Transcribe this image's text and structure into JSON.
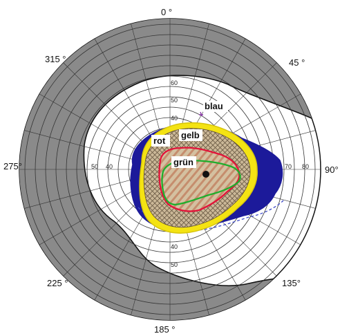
{
  "diagram": {
    "angle_labels": {
      "a0": "0 °",
      "a45": "45 °",
      "a90": "90°",
      "a135": "135°",
      "a185": "185 °",
      "a225": "225 °",
      "a275": "275°",
      "a315": "315 °"
    },
    "ring_labels": {
      "top_60": "60",
      "top_50": "50",
      "top_40": "40",
      "left_50": "50",
      "left_40": "40",
      "right_70": "70",
      "right_80": "80",
      "bottom_40": "40",
      "bottom_50": "50"
    },
    "isopter_labels": {
      "blau": "blau",
      "gelb": "gelb",
      "rot": "rot",
      "gruen": "grün"
    },
    "colors": {
      "gray_region": "#8a8a8a",
      "grid": "#333333",
      "blau": "#1c1a9a",
      "gelb": "#f4e313",
      "rot": "#e2143a",
      "gruen": "#1fae2c",
      "hatch_fill": "#c9b696",
      "blind_spot": "#111111"
    }
  }
}
